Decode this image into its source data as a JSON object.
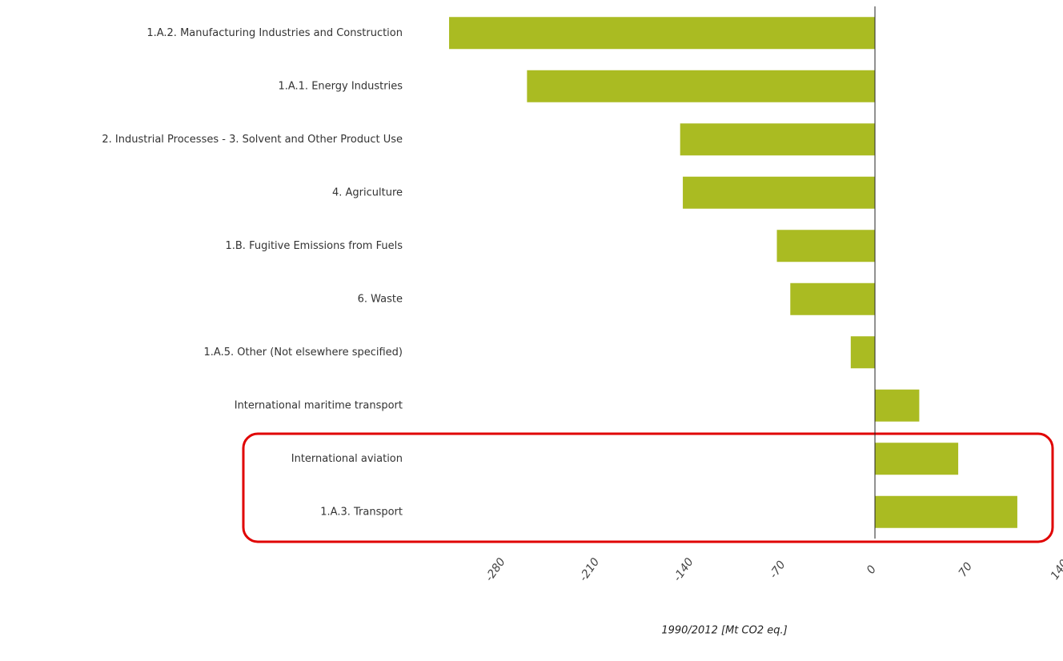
{
  "chart_data": {
    "type": "hbar",
    "categories": [
      "1.A.2. Manufacturing Industries and Construction",
      "1.A.1. Energy Industries",
      "2. Industrial Processes - 3. Solvent and Other Product Use",
      "4. Agriculture",
      "1.B. Fugitive Emissions from Fuels",
      "6. Waste",
      "1.A.5. Other (Not elsewhere specified)",
      "International maritime transport",
      "International aviation",
      "1.A.3. Transport"
    ],
    "values": [
      -317,
      -259,
      -145,
      -143,
      -73,
      -63,
      -18,
      33,
      62,
      106
    ],
    "color": "#aabb22",
    "xlim": [
      -320,
      140
    ],
    "xticks": [
      -280,
      -210,
      -140,
      -70,
      0,
      70,
      140
    ],
    "xlabel": "1990/2012 [Mt CO2 eq.]",
    "grid": false
  }
}
